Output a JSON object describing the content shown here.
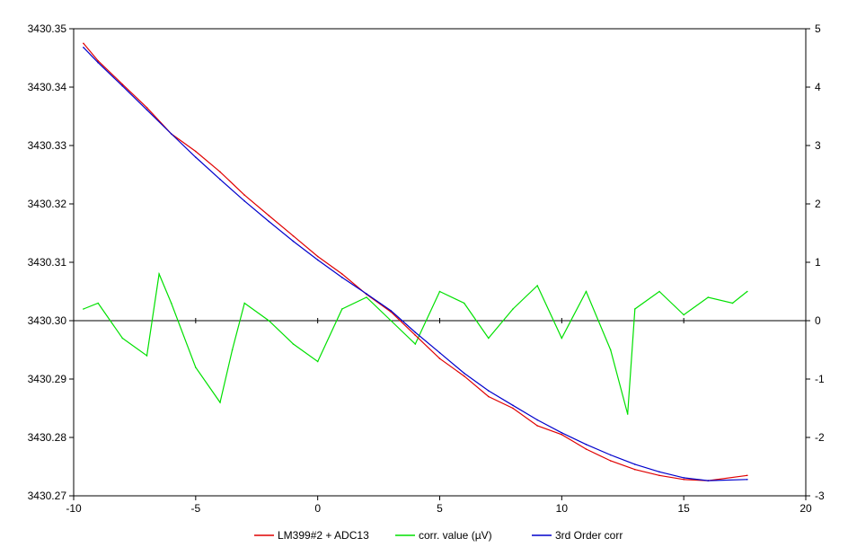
{
  "chart_data": {
    "type": "line",
    "title": "",
    "xlabel": "",
    "ylabel": "",
    "y2label": "",
    "xlim": [
      -10,
      20
    ],
    "ylim": [
      3430.27,
      3430.35
    ],
    "y2lim": [
      -3,
      5
    ],
    "x_ticks": [
      -10,
      -5,
      0,
      5,
      10,
      15,
      20
    ],
    "x_tick_labels": [
      "-10",
      "-5",
      "0",
      "5",
      "10",
      "15",
      "20"
    ],
    "y_ticks": [
      3430.27,
      3430.28,
      3430.29,
      3430.3,
      3430.31,
      3430.32,
      3430.33,
      3430.34,
      3430.35
    ],
    "y_tick_labels": [
      "3430.27",
      "3430.28",
      "3430.29",
      "3430.30",
      "3430.31",
      "3430.32",
      "3430.33",
      "3430.34",
      "3430.35"
    ],
    "y2_ticks": [
      -3,
      -2,
      -1,
      0,
      1,
      2,
      3,
      4,
      5
    ],
    "y2_tick_labels": [
      "-3",
      "-2",
      "-1",
      "0",
      "1",
      "2",
      "3",
      "4",
      "5"
    ],
    "grid": false,
    "legend_position": "bottom",
    "series": [
      {
        "name": "LM399#2 + ADC13",
        "color": "#e00000",
        "axis": "left",
        "x": [
          -9.6,
          -9.0,
          -8.0,
          -7.0,
          -6.0,
          -5.0,
          -4.0,
          -3.0,
          -2.0,
          -1.0,
          0.0,
          1.0,
          2.0,
          3.0,
          4.0,
          5.0,
          6.0,
          7.0,
          8.0,
          9.0,
          10.0,
          11.0,
          12.0,
          13.0,
          14.0,
          15.0,
          16.0,
          17.6
        ],
        "y": [
          3430.3475,
          3430.3445,
          3430.3405,
          3430.3365,
          3430.332,
          3430.329,
          3430.3255,
          3430.3215,
          3430.318,
          3430.3145,
          3430.311,
          3430.308,
          3430.3045,
          3430.3015,
          3430.2975,
          3430.2935,
          3430.2905,
          3430.287,
          3430.285,
          3430.282,
          3430.2805,
          3430.278,
          3430.276,
          3430.2745,
          3430.2735,
          3430.2728,
          3430.2726,
          3430.2735
        ]
      },
      {
        "name": "corr. value (µV)",
        "color": "#00e000",
        "axis": "right",
        "x": [
          -9.6,
          -9.0,
          -8.0,
          -7.0,
          -6.5,
          -6.0,
          -5.0,
          -4.0,
          -3.5,
          -3.0,
          -2.0,
          -1.0,
          0.0,
          1.0,
          2.0,
          3.0,
          4.0,
          5.0,
          6.0,
          7.0,
          8.0,
          9.0,
          10.0,
          11.0,
          12.0,
          12.7,
          13.0,
          14.0,
          15.0,
          16.0,
          17.0,
          17.6
        ],
        "y": [
          0.2,
          0.3,
          -0.3,
          -0.6,
          0.8,
          0.3,
          -0.8,
          -1.4,
          -0.5,
          0.3,
          0.0,
          -0.4,
          -0.7,
          0.2,
          0.4,
          0.0,
          -0.4,
          0.5,
          0.3,
          -0.3,
          0.2,
          0.6,
          -0.3,
          0.5,
          -0.5,
          -1.6,
          0.2,
          0.5,
          0.1,
          0.4,
          0.3,
          0.5
        ]
      },
      {
        "name": "3rd Order corr",
        "color": "#0000cc",
        "axis": "left",
        "x": [
          -9.6,
          -9.0,
          -8.0,
          -7.0,
          -6.0,
          -5.0,
          -4.0,
          -3.0,
          -2.0,
          -1.0,
          0.0,
          1.0,
          2.0,
          3.0,
          4.0,
          5.0,
          6.0,
          7.0,
          8.0,
          9.0,
          10.0,
          11.0,
          12.0,
          13.0,
          14.0,
          15.0,
          16.0,
          17.6
        ],
        "y": [
          3430.3468,
          3430.3442,
          3430.3402,
          3430.3361,
          3430.332,
          3430.328,
          3430.3242,
          3430.3205,
          3430.317,
          3430.3136,
          3430.3104,
          3430.3074,
          3430.3046,
          3430.3017,
          3430.298,
          3430.2945,
          3430.291,
          3430.288,
          3430.2855,
          3430.283,
          3430.2808,
          3430.2788,
          3430.277,
          3430.2754,
          3430.2741,
          3430.2731,
          3430.2726,
          3430.2728
        ]
      }
    ],
    "zero_line": {
      "axis": "right",
      "value": 0,
      "color": "#000000"
    }
  }
}
